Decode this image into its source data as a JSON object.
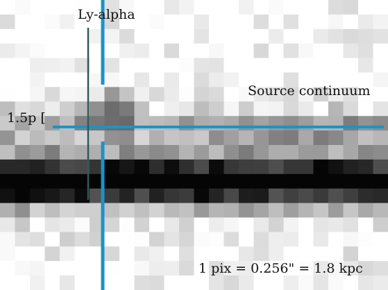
{
  "annotations": {
    "lyalpha": "Ly-alpha",
    "source_continuum": "Source continuum",
    "scale_marker": "1.5p [",
    "pixel_scale": "1 pix = 0.256\" = 1.8 kpc"
  },
  "colors": {
    "crosshair": "#1b93c9",
    "aperture_line": "#2f5a56",
    "background": "#ffffff",
    "text": "#111111"
  },
  "image": {
    "description_kind": "grayscale 2D spectrum",
    "colormap": "gray-inverted"
  }
}
